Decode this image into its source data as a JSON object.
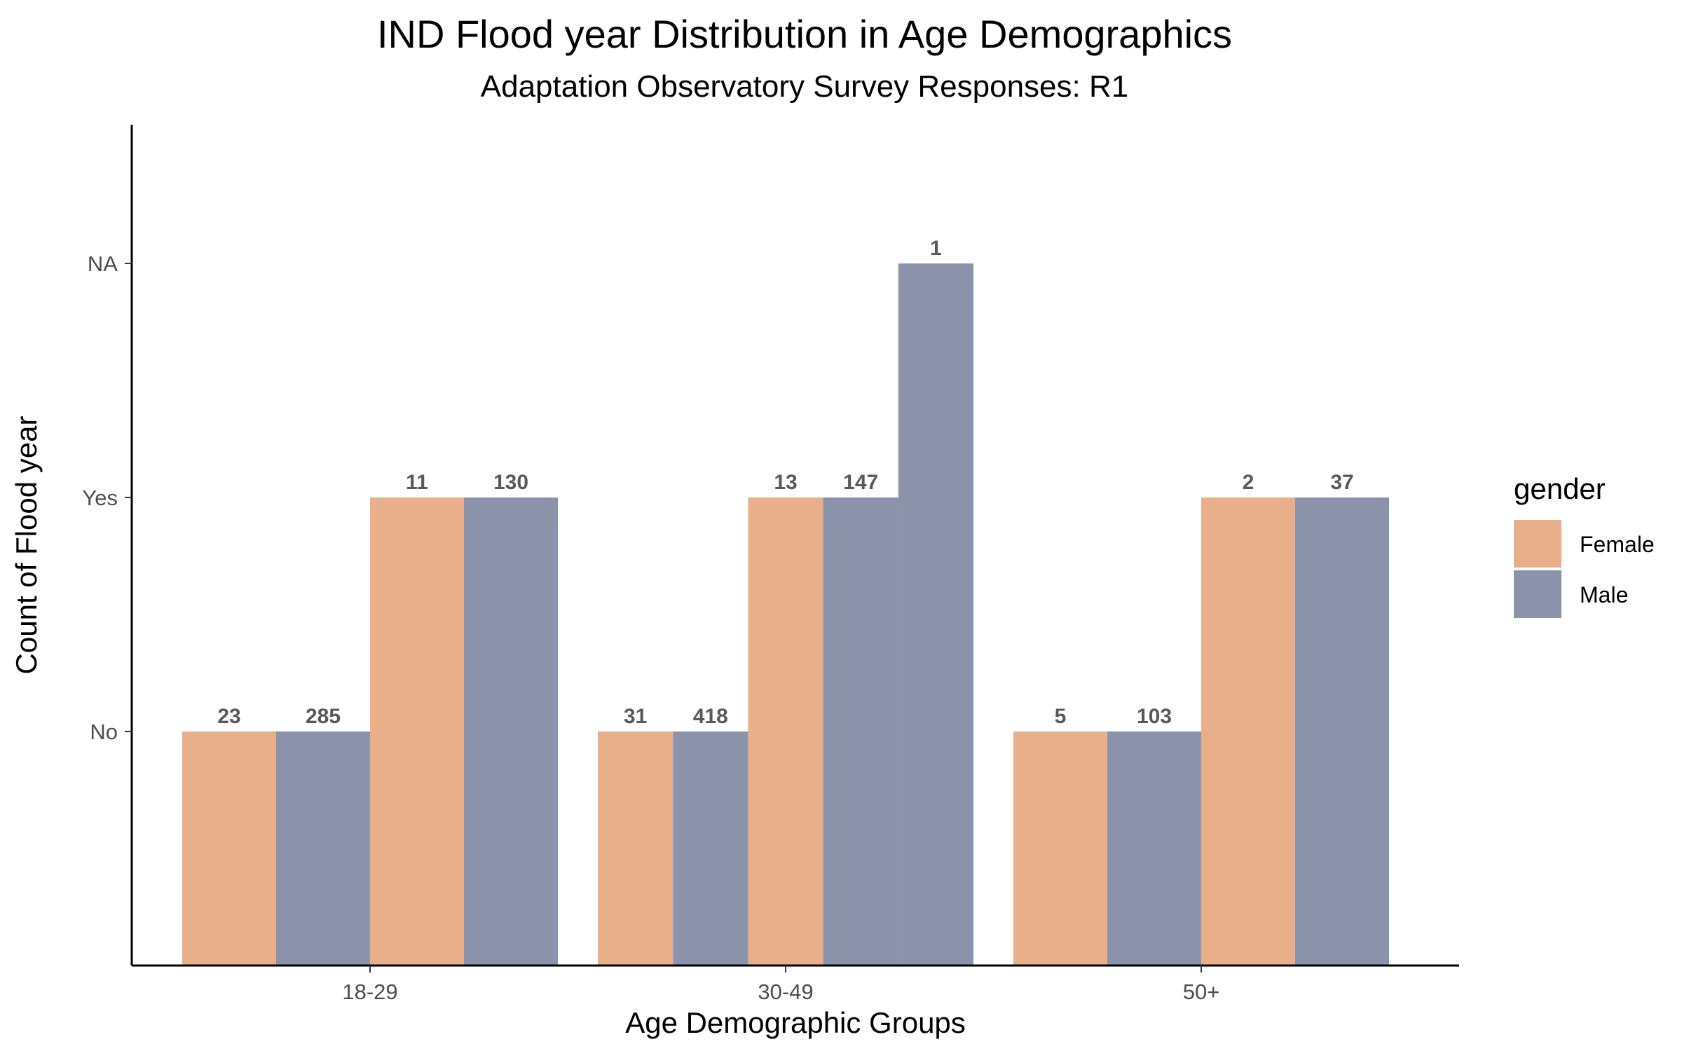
{
  "chart_data": {
    "type": "bar",
    "title": "IND Flood year Distribution in Age Demographics",
    "subtitle": "Adaptation Observatory Survey Responses: R1",
    "xlabel": "Age Demographic Groups",
    "ylabel": "Count of Flood year",
    "categories": [
      "18-29",
      "30-49",
      "50+"
    ],
    "y_levels": [
      "No",
      "Yes",
      "NA"
    ],
    "legend": {
      "title": "gender",
      "position": "right",
      "entries": [
        {
          "name": "Female",
          "color": "#E8AF8A"
        },
        {
          "name": "Male",
          "color": "#8B93AB"
        }
      ]
    },
    "groups": [
      {
        "category": "18-29",
        "bars": [
          {
            "response": "No",
            "gender": "Female",
            "count": 23
          },
          {
            "response": "No",
            "gender": "Male",
            "count": 285
          },
          {
            "response": "Yes",
            "gender": "Female",
            "count": 11
          },
          {
            "response": "Yes",
            "gender": "Male",
            "count": 130
          }
        ]
      },
      {
        "category": "30-49",
        "bars": [
          {
            "response": "No",
            "gender": "Female",
            "count": 31
          },
          {
            "response": "No",
            "gender": "Male",
            "count": 418
          },
          {
            "response": "Yes",
            "gender": "Female",
            "count": 13
          },
          {
            "response": "Yes",
            "gender": "Male",
            "count": 147
          },
          {
            "response": "NA",
            "gender": "Male",
            "count": 1
          }
        ]
      },
      {
        "category": "50+",
        "bars": [
          {
            "response": "No",
            "gender": "Female",
            "count": 5
          },
          {
            "response": "No",
            "gender": "Male",
            "count": 103
          },
          {
            "response": "Yes",
            "gender": "Female",
            "count": 2
          },
          {
            "response": "Yes",
            "gender": "Male",
            "count": 37
          }
        ]
      }
    ],
    "grid": false
  }
}
